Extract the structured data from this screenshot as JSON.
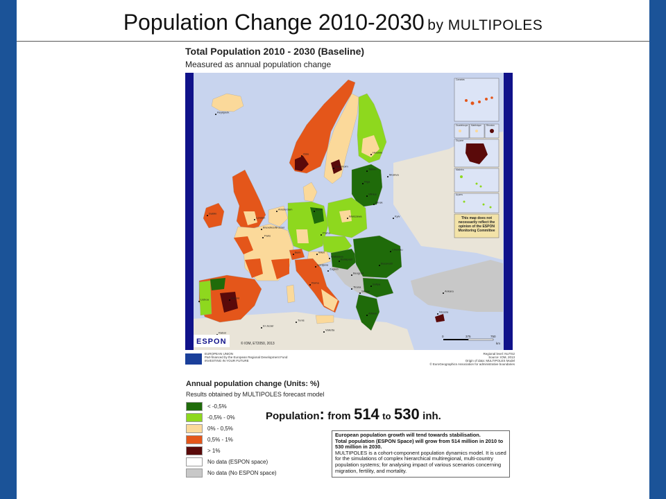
{
  "slide": {
    "title_main": "Population Change 2010-2030",
    "title_sub": "by MULTIPOLES",
    "colors": {
      "side_bars": "#1b5398",
      "frame_bars": "#10128a",
      "sea": "#c8d4ee",
      "no_data_no_espon": "#c8c8c8"
    }
  },
  "map": {
    "title": "Total Population 2010 - 2030 (Baseline)",
    "subtitle": "Measured as annual population change",
    "espon_logo": "ESPON",
    "copyright": "© IOM, ET2050, 2013",
    "scale": {
      "ticks": [
        "0",
        "375",
        "750"
      ],
      "unit": "km"
    },
    "inset_labels": [
      "Canarias",
      "Guadeloupe",
      "Martinique",
      "Réunion",
      "Guyane",
      "Madeira",
      "Açores"
    ],
    "disclaimer": "This map does not necessarily reflect the opinion of the ESPON Monitoring Committee",
    "city_labels": [
      "Reykjavík",
      "Oslo",
      "Helsinki",
      "Stockholm",
      "Tallinn",
      "Riga",
      "Moskva",
      "Vilnius",
      "Minsk",
      "Dublin",
      "London",
      "Amsterdam",
      "Berlin",
      "Warszawa",
      "Kyiv",
      "Bruxelles/Brussel",
      "Paris",
      "Praha",
      "Wien",
      "Bratislava",
      "Budapest",
      "Chisinau",
      "Bern",
      "Ljubljana",
      "Zagreb",
      "Beograd",
      "Bucuresti",
      "Lisboa",
      "Madrid",
      "Roma",
      "Sofiya",
      "Tirana",
      "Skopje",
      "Ankara",
      "Athinai",
      "Nicosia",
      "Valletta",
      "Rabat",
      "El-Jezair",
      "Tunis"
    ]
  },
  "eu_band": {
    "flag": "European Union flag",
    "text_lines": [
      "EUROPEAN UNION",
      "Part-financed by the European Regional Development Fund",
      "INVESTING IN YOUR FUTURE"
    ],
    "right_lines": [
      "Regional level: NUTS2",
      "Source: IOM, 2013",
      "Origin of data: MULTIPOLES Model",
      "© EuroGeographics Association for administrative boundaries"
    ]
  },
  "legend": {
    "title": "Annual population change (Units: %)",
    "subtitle": "Results obtained by MULTIPOLES forecast model",
    "items": [
      {
        "label": "< -0,5%",
        "color": "#1f6b0a"
      },
      {
        "label": "-0,5% - 0%",
        "color": "#8ed81e"
      },
      {
        "label": "0% - 0,5%",
        "color": "#fbd99a"
      },
      {
        "label": "0,5% - 1%",
        "color": "#e4561a"
      },
      {
        "label": "> 1%",
        "color": "#5a0a0a"
      },
      {
        "label": "No data (ESPON space)",
        "color": "#ffffff"
      },
      {
        "label": "No data (No ESPON space)",
        "color": "#c8c8c8"
      }
    ]
  },
  "population": {
    "label": "Population",
    "colon": ":",
    "from": "from",
    "from_value": "514",
    "to": "to",
    "to_value": "530",
    "unit": "inh."
  },
  "note": {
    "lines_bold": [
      "European population growth will tend towards stabilisation.",
      "Total population (ESPON Space) will grow from 514 million in 2010 to 530 million in 2030."
    ],
    "lines_normal": [
      "MULTIPOLES is a cohort-component population dynamics model. It is used for the simulations of complex hierarchical multiregional, multi-country population systems; for analysing impact of various scenarios concerning migration, fertility, and mortality."
    ]
  }
}
